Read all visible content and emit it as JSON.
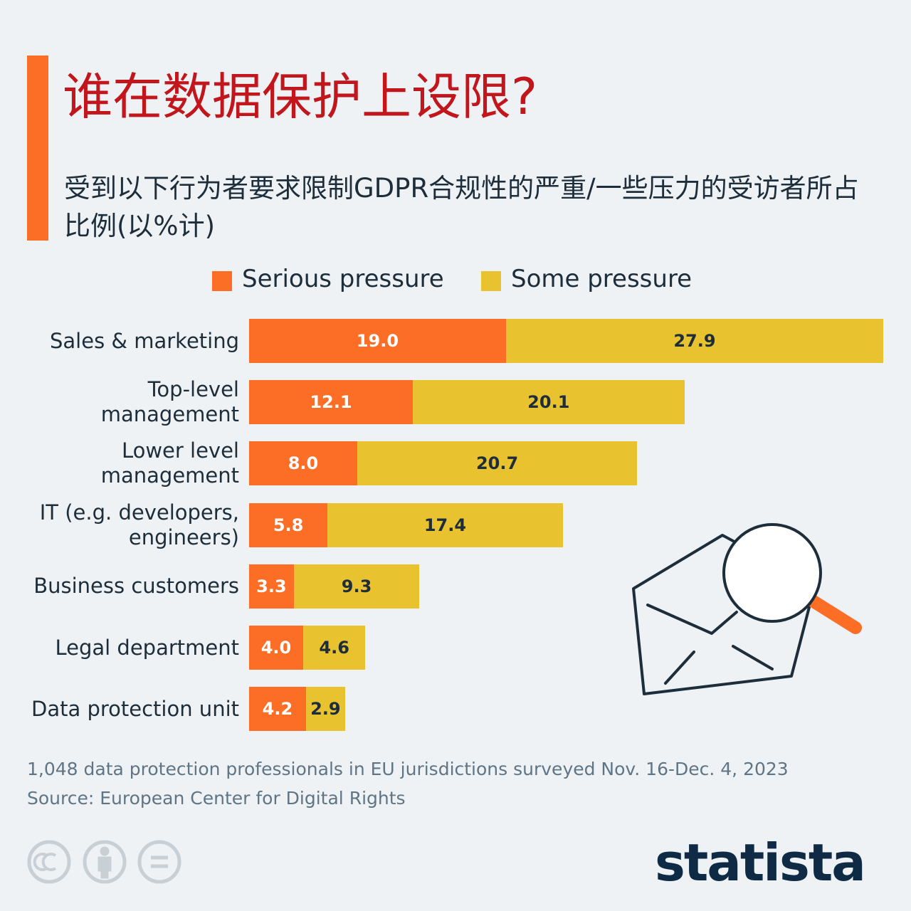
{
  "chart_data": {
    "type": "stacked-bar-horizontal",
    "title": "谁在数据保护上设限?",
    "subtitle": "受到以下行为者要求限制GDPR合规性的严重/一些压力的受访者所占比例(以%计)",
    "categories": [
      "Sales & marketing",
      "Top-level\nmanagement",
      "Lower level\nmanagement",
      "IT (e.g. developers,\nengineers)",
      "Business customers",
      "Legal department",
      "Data protection unit"
    ],
    "series": [
      {
        "name": "Serious pressure",
        "color": "#fc6d26",
        "values": [
          19.0,
          12.1,
          8.0,
          5.8,
          3.3,
          4.0,
          4.2
        ],
        "value_labels": [
          "19.0",
          "12.1",
          "8.0",
          "5.8",
          "3.3",
          "4.0",
          "4.2"
        ]
      },
      {
        "name": "Some pressure",
        "color": "#e9c22f",
        "values": [
          27.9,
          20.1,
          20.7,
          17.4,
          9.3,
          4.6,
          2.9
        ],
        "value_labels": [
          "27.9",
          "20.1",
          "20.7",
          "17.4",
          "9.3",
          "4.6",
          "2.9"
        ]
      }
    ],
    "note": "1,048 data protection professionals in EU jurisdictions surveyed Nov. 16-Dec. 4, 2023",
    "source": "Source: European Center for Digital Rights",
    "brand": "statista"
  }
}
